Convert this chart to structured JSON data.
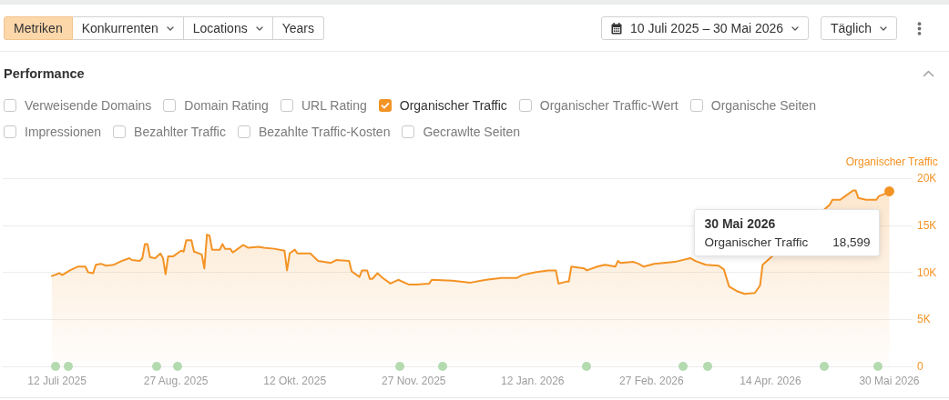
{
  "chart_data": {
    "type": "area",
    "title": "Performance",
    "annotations": [
      "Metriken",
      "Konkurrenten",
      "Locations",
      "Years",
      "10 Juli 2025 – 30 Mai 2026",
      "Täglich",
      "Verweisende Domains",
      "Domain Rating",
      "URL Rating",
      "Organischer Traffic",
      "Organischer Traffic-Wert",
      "Organische Seiten",
      "Impressionen",
      "Bezahlter Traffic",
      "Bezahlte Traffic-Kosten",
      "Gecrawlte Seiten",
      "30 Mai 2026",
      "18,599"
    ],
    "x": [
      "2025-07-10",
      "2025-07-13",
      "2025-07-14",
      "2025-07-17",
      "2025-07-20",
      "2025-07-23",
      "2025-07-24",
      "2025-07-26",
      "2025-07-27",
      "2025-07-29",
      "2025-07-31",
      "2025-08-03",
      "2025-08-06",
      "2025-08-09",
      "2025-08-10",
      "2025-08-13",
      "2025-08-14",
      "2025-08-15",
      "2025-08-16",
      "2025-08-17",
      "2025-08-19",
      "2025-08-21",
      "2025-08-22",
      "2025-08-23",
      "2025-08-24",
      "2025-08-26",
      "2025-08-29",
      "2025-08-30",
      "2025-08-31",
      "2025-09-02",
      "2025-09-03",
      "2025-09-06",
      "2025-09-07",
      "2025-09-08",
      "2025-09-09",
      "2025-09-10",
      "2025-09-13",
      "2025-09-14",
      "2025-09-15",
      "2025-09-17",
      "2025-09-18",
      "2025-09-20",
      "2025-09-22",
      "2025-09-24",
      "2025-09-28",
      "2025-09-30",
      "2025-10-04",
      "2025-10-08",
      "2025-10-09",
      "2025-10-10",
      "2025-10-12",
      "2025-10-13",
      "2025-10-18",
      "2025-10-21",
      "2025-10-26",
      "2025-10-28",
      "2025-11-02",
      "2025-11-03",
      "2025-11-06",
      "2025-11-07",
      "2025-11-09",
      "2025-11-10",
      "2025-11-11",
      "2025-11-13",
      "2025-11-15",
      "2025-11-18",
      "2025-11-21",
      "2025-11-25",
      "2025-11-28",
      "2025-12-03",
      "2025-12-04",
      "2025-12-12",
      "2025-12-19",
      "2025-12-25",
      "2025-12-31",
      "2026-01-06",
      "2026-01-08",
      "2026-01-13",
      "2026-01-18",
      "2026-01-21",
      "2026-01-22",
      "2026-01-25",
      "2026-01-26",
      "2026-01-27",
      "2026-02-01",
      "2026-02-02",
      "2026-02-06",
      "2026-02-09",
      "2026-02-13",
      "2026-02-14",
      "2026-02-15",
      "2026-02-20",
      "2026-02-22",
      "2026-02-24",
      "2026-02-28",
      "2026-03-08",
      "2026-03-14",
      "2026-03-16",
      "2026-03-20",
      "2026-03-25",
      "2026-03-27",
      "2026-03-29",
      "2026-04-01",
      "2026-04-04",
      "2026-04-08",
      "2026-04-10",
      "2026-04-11",
      "2026-05-07",
      "2026-05-08",
      "2026-05-11",
      "2026-05-13",
      "2026-05-16",
      "2026-05-17",
      "2026-05-18",
      "2026-05-21",
      "2026-05-25",
      "2026-05-26",
      "2026-05-28",
      "2026-05-30"
    ],
    "series": [
      {
        "name": "Organischer Traffic",
        "color": "#f39324",
        "values": [
          9600,
          9900,
          9700,
          10200,
          10600,
          10600,
          10000,
          9900,
          10800,
          10900,
          10700,
          10800,
          11200,
          11500,
          11300,
          11200,
          11500,
          13000,
          13000,
          11600,
          11500,
          12000,
          11500,
          9800,
          11700,
          11700,
          12300,
          12200,
          13400,
          13400,
          12200,
          11900,
          10400,
          14000,
          13900,
          12400,
          12400,
          13000,
          12500,
          12500,
          12100,
          12500,
          12900,
          12600,
          12700,
          12600,
          12500,
          12300,
          10200,
          12000,
          12400,
          12000,
          12000,
          11200,
          11000,
          11300,
          11200,
          10100,
          9500,
          10200,
          10200,
          9300,
          9300,
          9900,
          9400,
          8800,
          9200,
          8700,
          8700,
          8800,
          9200,
          9100,
          8900,
          9200,
          9400,
          9400,
          9700,
          10000,
          10200,
          10200,
          8800,
          9000,
          9000,
          10600,
          10400,
          10200,
          10600,
          10800,
          10600,
          11200,
          11000,
          11100,
          10900,
          10600,
          10900,
          11100,
          11500,
          11200,
          10800,
          10700,
          10300,
          8500,
          8000,
          7700,
          7800,
          8600,
          10800,
          17200,
          17700,
          17700,
          18100,
          18700,
          18700,
          17900,
          17700,
          17700,
          18100,
          18300,
          18599
        ]
      }
    ],
    "xlim": [
      "2025-06-21",
      "2026-06-08"
    ],
    "xticks": [
      {
        "value": "2025-07-12",
        "label": "12 Juli 2025"
      },
      {
        "value": "2025-08-27",
        "label": "27 Aug. 2025"
      },
      {
        "value": "2025-10-12",
        "label": "12 Okt. 2025"
      },
      {
        "value": "2025-11-27",
        "label": "27 Nov. 2025"
      },
      {
        "value": "2026-01-12",
        "label": "12 Jan. 2026"
      },
      {
        "value": "2026-02-27",
        "label": "27 Feb. 2026"
      },
      {
        "value": "2026-04-14",
        "label": "14 Apr. 2026"
      },
      {
        "value": "2026-05-30",
        "label": "30 Mai 2026"
      }
    ],
    "ylim": [
      0,
      20000
    ],
    "yticks": [
      0,
      {
        "value": 5000,
        "label": "5K"
      },
      {
        "value": 10000,
        "label": "10K"
      },
      {
        "value": 15000,
        "label": "15K"
      },
      {
        "value": 20000,
        "label": "20K"
      }
    ],
    "grid": "y",
    "legend": "top right"
  }
}
